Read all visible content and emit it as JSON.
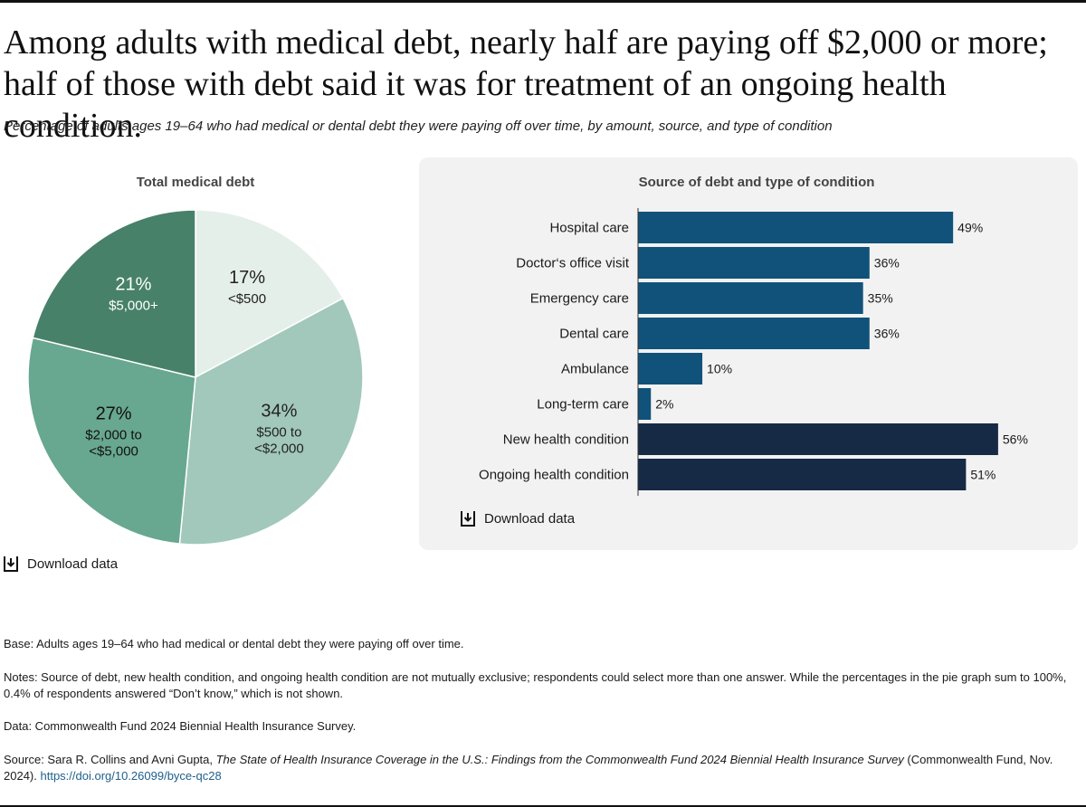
{
  "header": {
    "headline_line1": "Among adults with medical debt, nearly half are paying off $2,000 or more;",
    "headline_line2": "half of those with debt said it was for treatment of an ongoing health condition.",
    "subtitle": "Percentage of adults ages 19–64 who had medical or dental debt they were paying off over time, by amount, source, and type of condition"
  },
  "download_label": "Download data",
  "colors": {
    "pie": [
      "#e5efea",
      "#a1c8bb",
      "#68a790",
      "#478169"
    ],
    "bar_source": "#11527a",
    "bar_condition": "#162a45",
    "panel_bg": "#f2f2f2",
    "link": "#1f5f8b"
  },
  "chart_data": [
    {
      "type": "pie",
      "title": "Total medical debt",
      "slices": [
        {
          "pct_label": "17%",
          "value": 17,
          "label_lines": [
            "<$500"
          ]
        },
        {
          "pct_label": "34%",
          "value": 34,
          "label_lines": [
            "$500 to",
            "<$2,000"
          ]
        },
        {
          "pct_label": "27%",
          "value": 27,
          "label_lines": [
            "$2,000 to",
            "<$5,000"
          ]
        },
        {
          "pct_label": "21%",
          "value": 21,
          "label_lines": [
            "$5,000+"
          ]
        }
      ]
    },
    {
      "type": "bar",
      "orientation": "horizontal",
      "title": "Source of debt and type of condition",
      "xlim": [
        0,
        57
      ],
      "categories": [
        "Hospital care",
        "Doctor‘s office visit",
        "Emergency care",
        "Dental care",
        "Ambulance",
        "Long-term care",
        "New health condition",
        "Ongoing health condition"
      ],
      "values": [
        49,
        36,
        35,
        36,
        10,
        2,
        56,
        51
      ],
      "value_labels": [
        "49%",
        "36%",
        "35%",
        "36%",
        "10%",
        "2%",
        "56%",
        "51%"
      ],
      "group": [
        "source",
        "source",
        "source",
        "source",
        "source",
        "source",
        "condition",
        "condition"
      ]
    }
  ],
  "footer": {
    "base": "Base: Adults ages 19–64 who had medical or dental debt they were paying off over time.",
    "notes": "Notes: Source of debt, new health condition, and ongoing health condition are not mutually exclusive; respondents could select more than one answer. While the percentages in the pie graph sum to 100%, 0.4% of respondents answered “Don’t know,” which is not shown.",
    "data": "Data: Commonwealth Fund 2024 Biennial Health Insurance Survey.",
    "source_prefix": "Source: Sara R. Collins and Avni Gupta, ",
    "source_title": "The State of Health Insurance Coverage in the U.S.: Findings from the Commonwealth Fund 2024 Biennial Health Insurance Survey",
    "source_suffix": " (Commonwealth Fund, Nov. 2024). ",
    "source_link": "https://doi.org/10.26099/byce-qc28"
  }
}
